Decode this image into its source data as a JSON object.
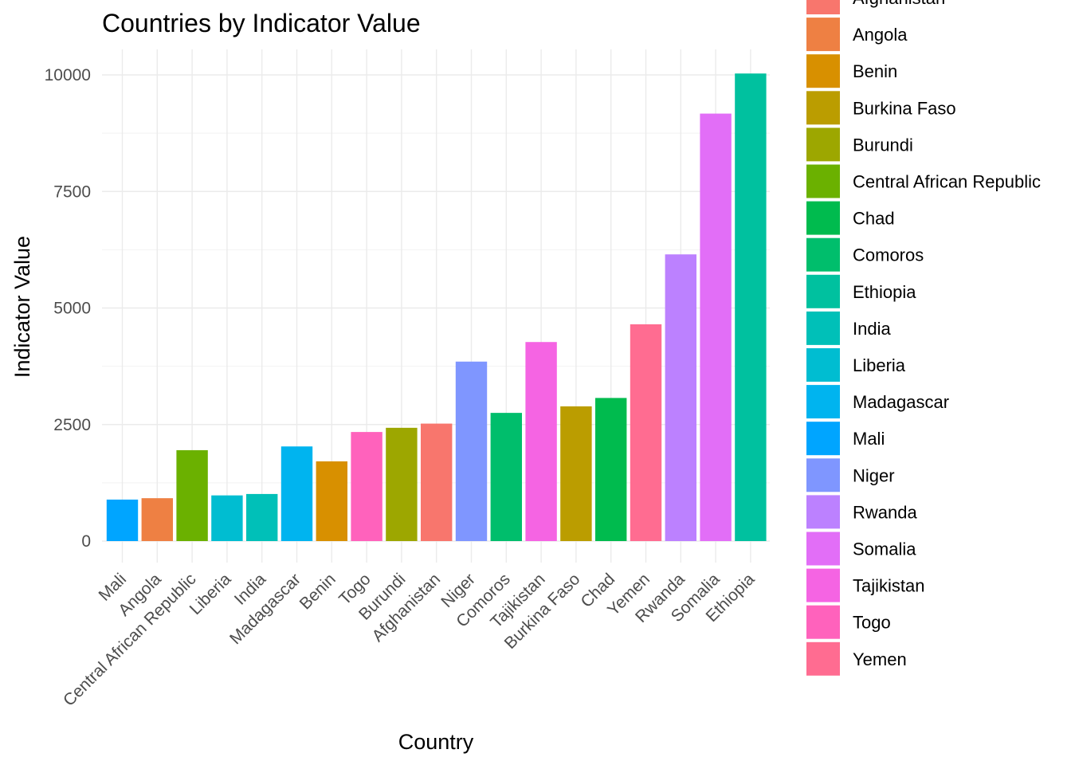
{
  "chart_data": {
    "type": "bar",
    "title": "Countries by Indicator Value",
    "xlabel": "Country",
    "ylabel": "Indicator Value",
    "ylim": [
      0,
      10000
    ],
    "yticks": [
      0,
      2500,
      5000,
      7500,
      10000
    ],
    "grid": true,
    "legend_position": "right",
    "categories": [
      "Mali",
      "Angola",
      "Central African Republic",
      "Liberia",
      "India",
      "Madagascar",
      "Benin",
      "Togo",
      "Burundi",
      "Afghanistan",
      "Niger",
      "Comoros",
      "Tajikistan",
      "Burkina Faso",
      "Chad",
      "Yemen",
      "Rwanda",
      "Somalia",
      "Ethiopia"
    ],
    "values": [
      890,
      920,
      1950,
      980,
      1010,
      2030,
      1710,
      2340,
      2430,
      2520,
      3850,
      2750,
      4270,
      2890,
      3070,
      4650,
      6150,
      9170,
      10030
    ],
    "colors": [
      "#00A5FF",
      "#EE8043",
      "#6BB100",
      "#00BDD1",
      "#00C0B8",
      "#00B4EF",
      "#D89000",
      "#FF62BC",
      "#9DA700",
      "#F8766D",
      "#7F96FF",
      "#00BE6C",
      "#F564E3",
      "#BB9D00",
      "#00BB4E",
      "#FF6C91",
      "#BC81FF",
      "#E26EF7",
      "#00C19F"
    ],
    "legend": [
      {
        "label": "Afghanistan",
        "color": "#F8766D"
      },
      {
        "label": "Angola",
        "color": "#EE8043"
      },
      {
        "label": "Benin",
        "color": "#D89000"
      },
      {
        "label": "Burkina Faso",
        "color": "#BB9D00"
      },
      {
        "label": "Burundi",
        "color": "#9DA700"
      },
      {
        "label": "Central African Republic",
        "color": "#6BB100"
      },
      {
        "label": "Chad",
        "color": "#00BB4E"
      },
      {
        "label": "Comoros",
        "color": "#00BE6C"
      },
      {
        "label": "Ethiopia",
        "color": "#00C19F"
      },
      {
        "label": "India",
        "color": "#00C0B8"
      },
      {
        "label": "Liberia",
        "color": "#00BDD1"
      },
      {
        "label": "Madagascar",
        "color": "#00B4EF"
      },
      {
        "label": "Mali",
        "color": "#00A5FF"
      },
      {
        "label": "Niger",
        "color": "#7F96FF"
      },
      {
        "label": "Rwanda",
        "color": "#BC81FF"
      },
      {
        "label": "Somalia",
        "color": "#E26EF7"
      },
      {
        "label": "Tajikistan",
        "color": "#F564E3"
      },
      {
        "label": "Togo",
        "color": "#FF62BC"
      },
      {
        "label": "Yemen",
        "color": "#FF6C91"
      }
    ]
  }
}
